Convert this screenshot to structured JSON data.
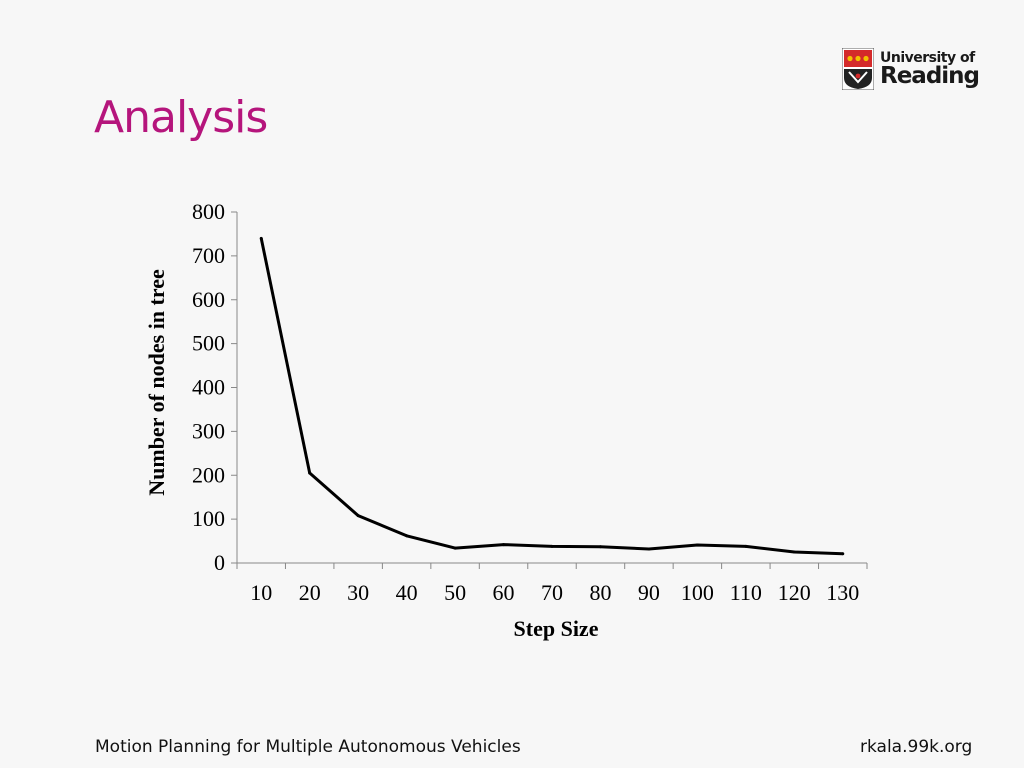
{
  "slide": {
    "title": "Analysis",
    "title_color": "#b5157c",
    "logo": {
      "line1": "University of",
      "line2": "Reading",
      "shield_color": "#d42a2a",
      "shield_icon": "reading-shield-icon"
    },
    "footer_left": "Motion Planning  for Multiple Autonomous Vehicles",
    "footer_right": "rkala.99k.org"
  },
  "chart_data": {
    "type": "line",
    "categories": [
      "10",
      "20",
      "30",
      "40",
      "50",
      "60",
      "70",
      "80",
      "90",
      "100",
      "110",
      "120",
      "130"
    ],
    "series": [
      {
        "values": [
          740,
          205,
          108,
          62,
          34,
          42,
          38,
          37,
          32,
          41,
          38,
          25,
          21
        ],
        "color": "#000000"
      }
    ],
    "xlabel": "Step Size",
    "ylabel": "Number of nodes in tree",
    "ylim": [
      0,
      800
    ],
    "yticks": [
      0,
      100,
      200,
      300,
      400,
      500,
      600,
      700,
      800
    ],
    "grid": false,
    "legend": false
  }
}
